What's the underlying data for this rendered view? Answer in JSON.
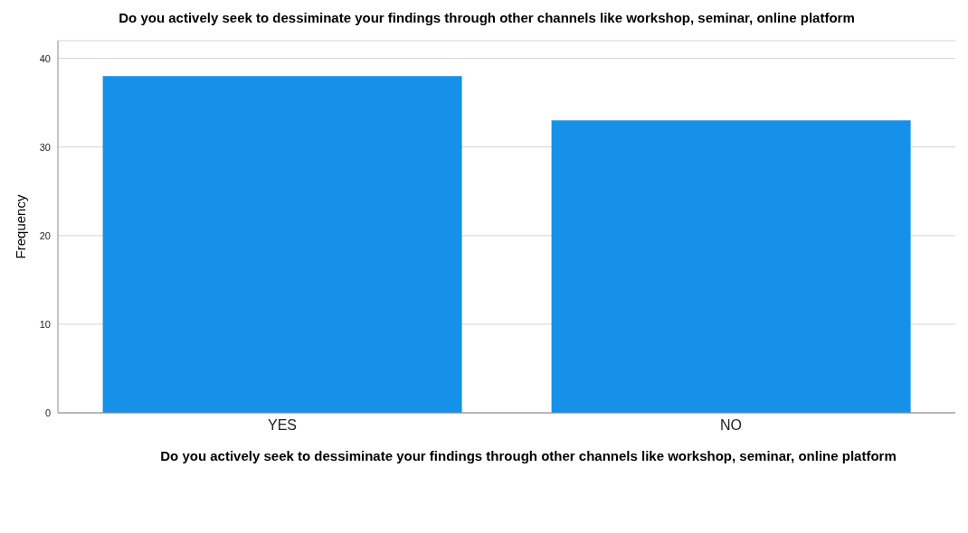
{
  "chart_data": {
    "type": "bar",
    "title": "Do you actively seek to dessiminate your findings through other channels like workshop, seminar, online platform",
    "xlabel": "Do you actively seek to dessiminate your findings through other channels like workshop, seminar, online platform",
    "ylabel": "Frequency",
    "categories": [
      "YES",
      "NO"
    ],
    "values": [
      38,
      33
    ],
    "color": "#1591ea",
    "ylim": [
      0,
      42
    ],
    "yticks": [
      0,
      10,
      20,
      30,
      40
    ],
    "grid": "y"
  }
}
